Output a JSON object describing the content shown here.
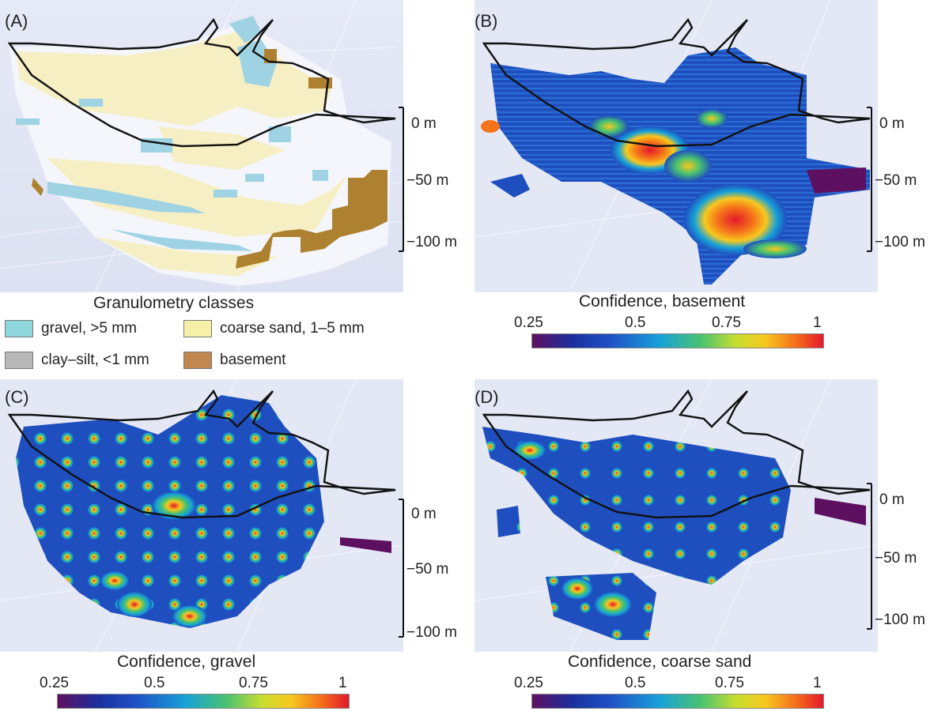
{
  "panels": {
    "a": {
      "letter": "(A)"
    },
    "b": {
      "letter": "(B)"
    },
    "c": {
      "letter": "(C)"
    },
    "d": {
      "letter": "(D)"
    }
  },
  "depth_scale": [
    "0 m",
    "−50 m",
    "−100 m"
  ],
  "legend": {
    "title": "Granulometry classes",
    "items": [
      {
        "label": "gravel, >5 mm",
        "color": "#8fd6dc"
      },
      {
        "label": "coarse sand, 1–5 mm",
        "color": "#f7f0a8"
      },
      {
        "label": "clay–silt, <1 mm",
        "color": "#b8b8b8"
      },
      {
        "label": "basement",
        "color": "#c2874f"
      }
    ]
  },
  "colorbars": {
    "b": {
      "caption": "Confidence, basement"
    },
    "c": {
      "caption": "Confidence, gravel"
    },
    "d": {
      "caption": "Confidence, coarse sand"
    },
    "ticks": [
      "0.25",
      "0.5",
      "0.75",
      "1"
    ]
  },
  "colors": {
    "background": "#e4e8f5",
    "clay": "#f3f5fb",
    "gravel": "#9fd5e6",
    "sand": "#f7f0c8",
    "basement": "#b08431",
    "low": "#1d3a9c",
    "high": "#e3192b"
  }
}
